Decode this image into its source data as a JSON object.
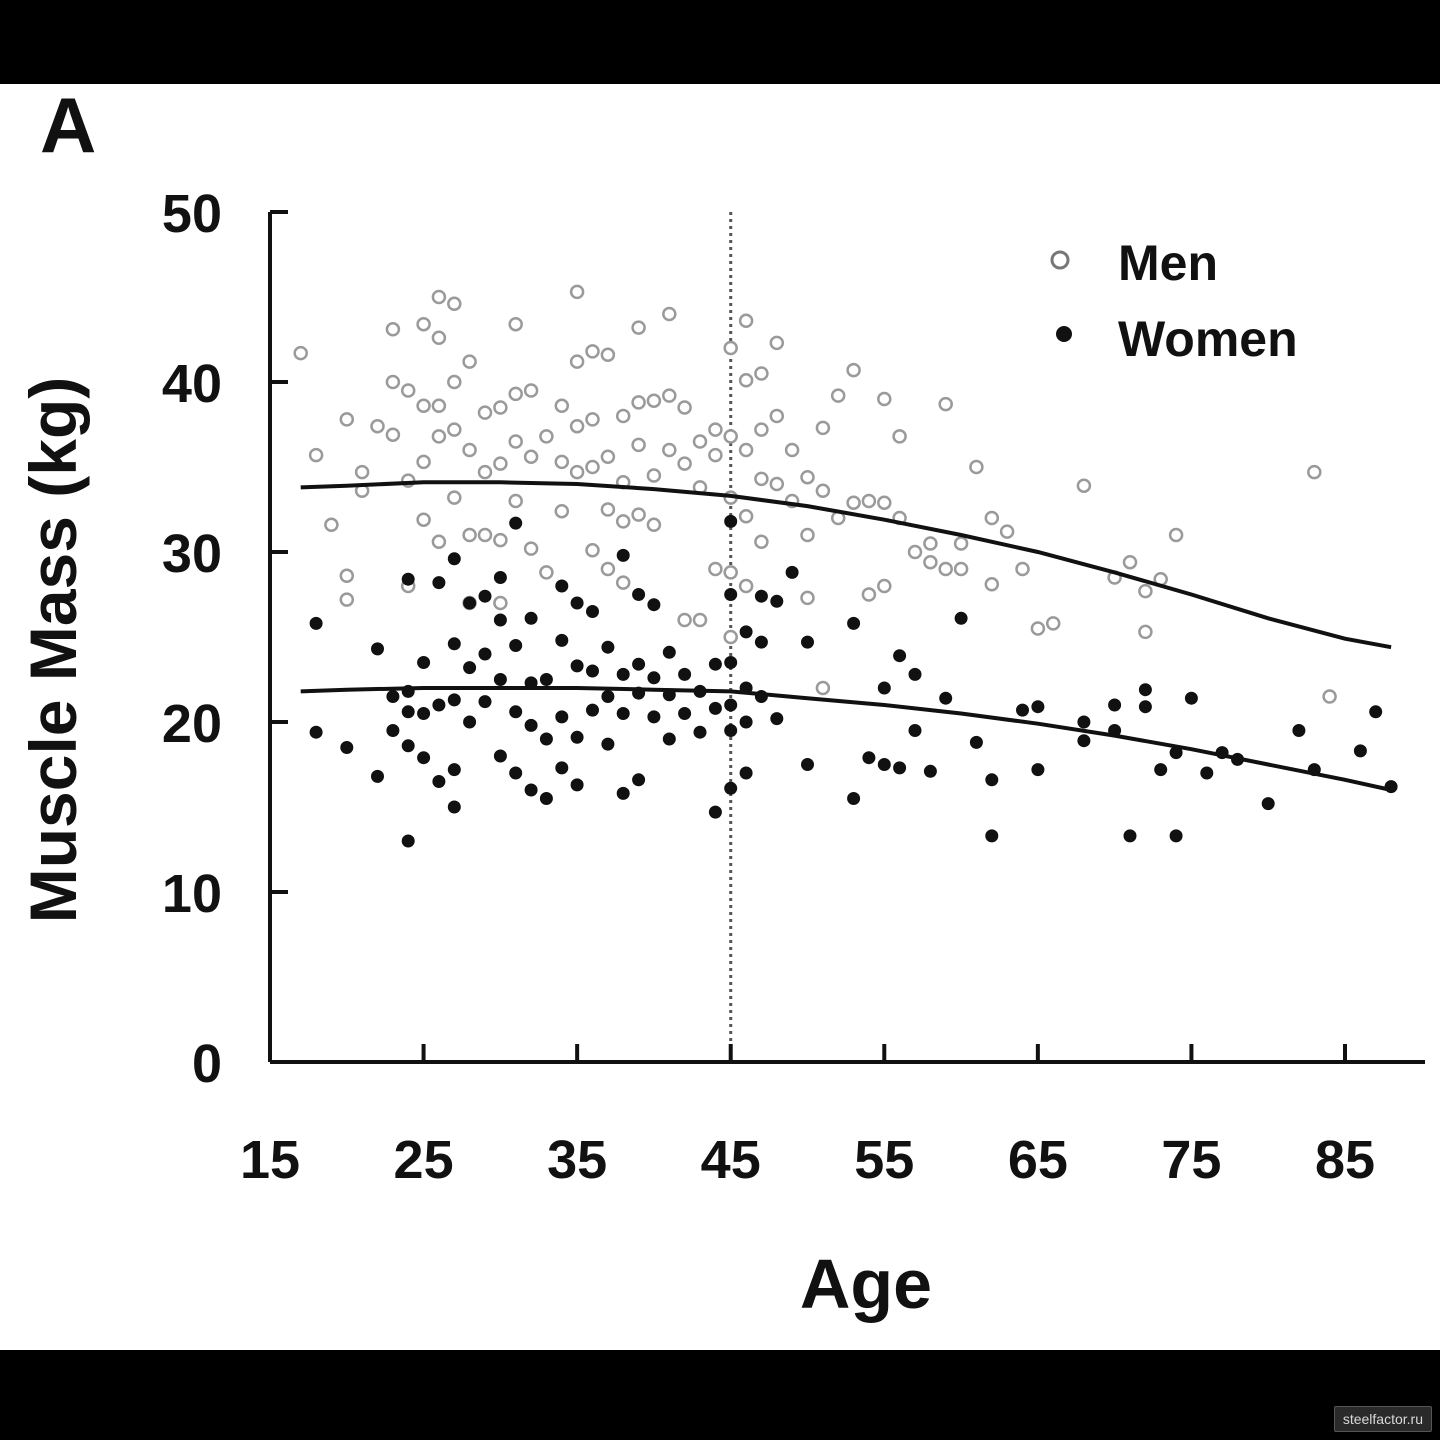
{
  "panel_label": "A",
  "watermark": "steelfactor.ru",
  "chart_data": {
    "type": "scatter",
    "xlabel": "Age",
    "ylabel": "Muscle Mass (kg)",
    "xlim": [
      15,
      90
    ],
    "ylim": [
      0,
      50
    ],
    "xticks": [
      15,
      25,
      35,
      45,
      55,
      65,
      75,
      85
    ],
    "yticks": [
      0,
      10,
      20,
      30,
      40,
      50
    ],
    "reference_line_x": 45,
    "legend": {
      "position": "top-right",
      "entries": [
        "Men",
        "Women"
      ]
    },
    "series": [
      {
        "name": "Men",
        "marker": "open-circle",
        "color": "#9a9a9a",
        "points": [
          [
            17,
            41.7
          ],
          [
            18,
            35.7
          ],
          [
            19,
            31.6
          ],
          [
            20,
            28.6
          ],
          [
            20,
            27.2
          ],
          [
            20,
            37.8
          ],
          [
            21,
            34.7
          ],
          [
            21,
            33.6
          ],
          [
            22,
            37.4
          ],
          [
            23,
            43.1
          ],
          [
            23,
            40.0
          ],
          [
            23,
            36.9
          ],
          [
            24,
            39.5
          ],
          [
            24,
            34.2
          ],
          [
            24,
            28.0
          ],
          [
            25,
            43.4
          ],
          [
            25,
            38.6
          ],
          [
            25,
            35.3
          ],
          [
            25,
            31.9
          ],
          [
            26,
            45.0
          ],
          [
            26,
            42.6
          ],
          [
            26,
            38.6
          ],
          [
            26,
            36.8
          ],
          [
            26,
            30.6
          ],
          [
            27,
            44.6
          ],
          [
            27,
            40.0
          ],
          [
            27,
            37.2
          ],
          [
            27,
            33.2
          ],
          [
            28,
            41.2
          ],
          [
            28,
            36.0
          ],
          [
            28,
            31.0
          ],
          [
            28,
            27.0
          ],
          [
            29,
            38.2
          ],
          [
            29,
            34.7
          ],
          [
            29,
            31.0
          ],
          [
            30,
            38.5
          ],
          [
            30,
            35.2
          ],
          [
            30,
            30.7
          ],
          [
            30,
            27.0
          ],
          [
            31,
            43.4
          ],
          [
            31,
            39.3
          ],
          [
            31,
            36.5
          ],
          [
            31,
            33.0
          ],
          [
            32,
            39.5
          ],
          [
            32,
            35.6
          ],
          [
            32,
            30.2
          ],
          [
            33,
            36.8
          ],
          [
            33,
            28.8
          ],
          [
            34,
            38.6
          ],
          [
            34,
            35.3
          ],
          [
            34,
            32.4
          ],
          [
            35,
            45.3
          ],
          [
            35,
            41.2
          ],
          [
            35,
            37.4
          ],
          [
            35,
            34.7
          ],
          [
            36,
            41.8
          ],
          [
            36,
            37.8
          ],
          [
            36,
            35.0
          ],
          [
            36,
            30.1
          ],
          [
            37,
            41.6
          ],
          [
            37,
            35.6
          ],
          [
            37,
            32.5
          ],
          [
            37,
            29.0
          ],
          [
            38,
            38.0
          ],
          [
            38,
            34.1
          ],
          [
            38,
            31.8
          ],
          [
            38,
            28.2
          ],
          [
            39,
            43.2
          ],
          [
            39,
            38.8
          ],
          [
            39,
            36.3
          ],
          [
            39,
            32.2
          ],
          [
            40,
            38.9
          ],
          [
            40,
            34.5
          ],
          [
            40,
            31.6
          ],
          [
            41,
            44.0
          ],
          [
            41,
            39.2
          ],
          [
            41,
            36.0
          ],
          [
            42,
            38.5
          ],
          [
            42,
            35.2
          ],
          [
            42,
            26.0
          ],
          [
            43,
            36.5
          ],
          [
            43,
            33.8
          ],
          [
            43,
            26.0
          ],
          [
            44,
            37.2
          ],
          [
            44,
            35.7
          ],
          [
            44,
            29.0
          ],
          [
            45,
            42.0
          ],
          [
            45,
            36.8
          ],
          [
            45,
            33.2
          ],
          [
            45,
            28.8
          ],
          [
            45,
            25.0
          ],
          [
            46,
            43.6
          ],
          [
            46,
            40.1
          ],
          [
            46,
            36.0
          ],
          [
            46,
            32.1
          ],
          [
            46,
            28.0
          ],
          [
            47,
            40.5
          ],
          [
            47,
            37.2
          ],
          [
            47,
            34.3
          ],
          [
            47,
            30.6
          ],
          [
            48,
            42.3
          ],
          [
            48,
            38.0
          ],
          [
            48,
            34.0
          ],
          [
            49,
            36.0
          ],
          [
            49,
            33.0
          ],
          [
            50,
            34.4
          ],
          [
            50,
            31.0
          ],
          [
            50,
            27.3
          ],
          [
            51,
            37.3
          ],
          [
            51,
            33.6
          ],
          [
            51,
            22.0
          ],
          [
            52,
            39.2
          ],
          [
            52,
            32.0
          ],
          [
            53,
            40.7
          ],
          [
            53,
            32.9
          ],
          [
            54,
            33.0
          ],
          [
            54,
            27.5
          ],
          [
            55,
            39.0
          ],
          [
            55,
            32.9
          ],
          [
            55,
            28.0
          ],
          [
            56,
            36.8
          ],
          [
            56,
            32.0
          ],
          [
            57,
            30.0
          ],
          [
            58,
            30.5
          ],
          [
            58,
            29.4
          ],
          [
            59,
            38.7
          ],
          [
            59,
            29.0
          ],
          [
            60,
            30.5
          ],
          [
            60,
            29.0
          ],
          [
            61,
            35.0
          ],
          [
            62,
            32.0
          ],
          [
            62,
            28.1
          ],
          [
            63,
            31.2
          ],
          [
            64,
            29.0
          ],
          [
            65,
            25.5
          ],
          [
            66,
            25.8
          ],
          [
            68,
            33.9
          ],
          [
            70,
            28.5
          ],
          [
            71,
            29.4
          ],
          [
            72,
            27.7
          ],
          [
            72,
            25.3
          ],
          [
            73,
            28.4
          ],
          [
            74,
            31.0
          ],
          [
            83,
            34.7
          ],
          [
            84,
            21.5
          ]
        ]
      },
      {
        "name": "Women",
        "marker": "filled-circle",
        "color": "#111111",
        "points": [
          [
            18,
            25.8
          ],
          [
            18,
            19.4
          ],
          [
            20,
            18.5
          ],
          [
            22,
            24.3
          ],
          [
            22,
            16.8
          ],
          [
            23,
            21.5
          ],
          [
            23,
            19.5
          ],
          [
            24,
            28.4
          ],
          [
            24,
            21.8
          ],
          [
            24,
            20.6
          ],
          [
            24,
            18.6
          ],
          [
            24,
            13.0
          ],
          [
            25,
            23.5
          ],
          [
            25,
            20.5
          ],
          [
            25,
            17.9
          ],
          [
            26,
            28.2
          ],
          [
            26,
            21.0
          ],
          [
            26,
            16.5
          ],
          [
            27,
            29.6
          ],
          [
            27,
            24.6
          ],
          [
            27,
            21.3
          ],
          [
            27,
            17.2
          ],
          [
            27,
            15.0
          ],
          [
            28,
            27.0
          ],
          [
            28,
            23.2
          ],
          [
            28,
            20.0
          ],
          [
            29,
            27.4
          ],
          [
            29,
            24.0
          ],
          [
            29,
            21.2
          ],
          [
            30,
            28.5
          ],
          [
            30,
            26.0
          ],
          [
            30,
            22.5
          ],
          [
            30,
            18.0
          ],
          [
            31,
            31.7
          ],
          [
            31,
            24.5
          ],
          [
            31,
            20.6
          ],
          [
            31,
            17.0
          ],
          [
            32,
            26.1
          ],
          [
            32,
            22.3
          ],
          [
            32,
            19.8
          ],
          [
            32,
            16.0
          ],
          [
            33,
            22.5
          ],
          [
            33,
            19.0
          ],
          [
            33,
            15.5
          ],
          [
            34,
            28.0
          ],
          [
            34,
            24.8
          ],
          [
            34,
            20.3
          ],
          [
            34,
            17.3
          ],
          [
            35,
            27.0
          ],
          [
            35,
            23.3
          ],
          [
            35,
            19.1
          ],
          [
            35,
            16.3
          ],
          [
            36,
            26.5
          ],
          [
            36,
            23.0
          ],
          [
            36,
            20.7
          ],
          [
            37,
            24.4
          ],
          [
            37,
            21.5
          ],
          [
            37,
            18.7
          ],
          [
            38,
            29.8
          ],
          [
            38,
            22.8
          ],
          [
            38,
            20.5
          ],
          [
            38,
            15.8
          ],
          [
            39,
            27.5
          ],
          [
            39,
            23.4
          ],
          [
            39,
            21.7
          ],
          [
            39,
            16.6
          ],
          [
            40,
            26.9
          ],
          [
            40,
            22.6
          ],
          [
            40,
            20.3
          ],
          [
            41,
            24.1
          ],
          [
            41,
            21.6
          ],
          [
            41,
            19.0
          ],
          [
            42,
            22.8
          ],
          [
            42,
            20.5
          ],
          [
            43,
            21.8
          ],
          [
            43,
            19.4
          ],
          [
            44,
            23.4
          ],
          [
            44,
            20.8
          ],
          [
            44,
            14.7
          ],
          [
            45,
            31.8
          ],
          [
            45,
            27.5
          ],
          [
            45,
            23.5
          ],
          [
            45,
            21.0
          ],
          [
            45,
            19.5
          ],
          [
            45,
            16.1
          ],
          [
            46,
            25.3
          ],
          [
            46,
            22.0
          ],
          [
            46,
            20.0
          ],
          [
            46,
            17.0
          ],
          [
            47,
            27.4
          ],
          [
            47,
            24.7
          ],
          [
            47,
            21.5
          ],
          [
            48,
            27.1
          ],
          [
            48,
            20.2
          ],
          [
            49,
            28.8
          ],
          [
            50,
            24.7
          ],
          [
            50,
            17.5
          ],
          [
            53,
            25.8
          ],
          [
            53,
            15.5
          ],
          [
            54,
            17.9
          ],
          [
            55,
            22.0
          ],
          [
            55,
            17.5
          ],
          [
            56,
            23.9
          ],
          [
            56,
            17.3
          ],
          [
            57,
            22.8
          ],
          [
            57,
            19.5
          ],
          [
            58,
            17.1
          ],
          [
            59,
            21.4
          ],
          [
            60,
            26.1
          ],
          [
            61,
            18.8
          ],
          [
            62,
            16.6
          ],
          [
            62,
            13.3
          ],
          [
            64,
            20.7
          ],
          [
            65,
            20.9
          ],
          [
            65,
            17.2
          ],
          [
            68,
            20.0
          ],
          [
            68,
            18.9
          ],
          [
            70,
            21.0
          ],
          [
            70,
            19.5
          ],
          [
            72,
            21.9
          ],
          [
            72,
            20.9
          ],
          [
            71,
            13.3
          ],
          [
            73,
            17.2
          ],
          [
            74,
            18.2
          ],
          [
            74,
            13.3
          ],
          [
            75,
            21.4
          ],
          [
            76,
            17.0
          ],
          [
            77,
            18.2
          ],
          [
            78,
            17.8
          ],
          [
            80,
            15.2
          ],
          [
            82,
            19.5
          ],
          [
            83,
            17.2
          ],
          [
            86,
            18.3
          ],
          [
            87,
            20.6
          ],
          [
            88,
            16.2
          ]
        ]
      }
    ],
    "trend_lines": [
      {
        "series": "Men",
        "x": [
          17,
          20,
          25,
          30,
          35,
          40,
          45,
          50,
          55,
          60,
          65,
          70,
          75,
          80,
          85,
          88
        ],
        "y": [
          33.8,
          33.9,
          34.1,
          34.1,
          34.0,
          33.7,
          33.3,
          32.7,
          31.9,
          31.0,
          30.0,
          28.8,
          27.5,
          26.1,
          24.9,
          24.4
        ]
      },
      {
        "series": "Women",
        "x": [
          17,
          20,
          25,
          30,
          35,
          40,
          45,
          50,
          55,
          60,
          65,
          70,
          75,
          80,
          85,
          88
        ],
        "y": [
          21.8,
          21.9,
          22.0,
          22.0,
          22.0,
          21.9,
          21.8,
          21.4,
          21.0,
          20.5,
          19.9,
          19.2,
          18.4,
          17.5,
          16.6,
          16.0
        ]
      }
    ]
  }
}
